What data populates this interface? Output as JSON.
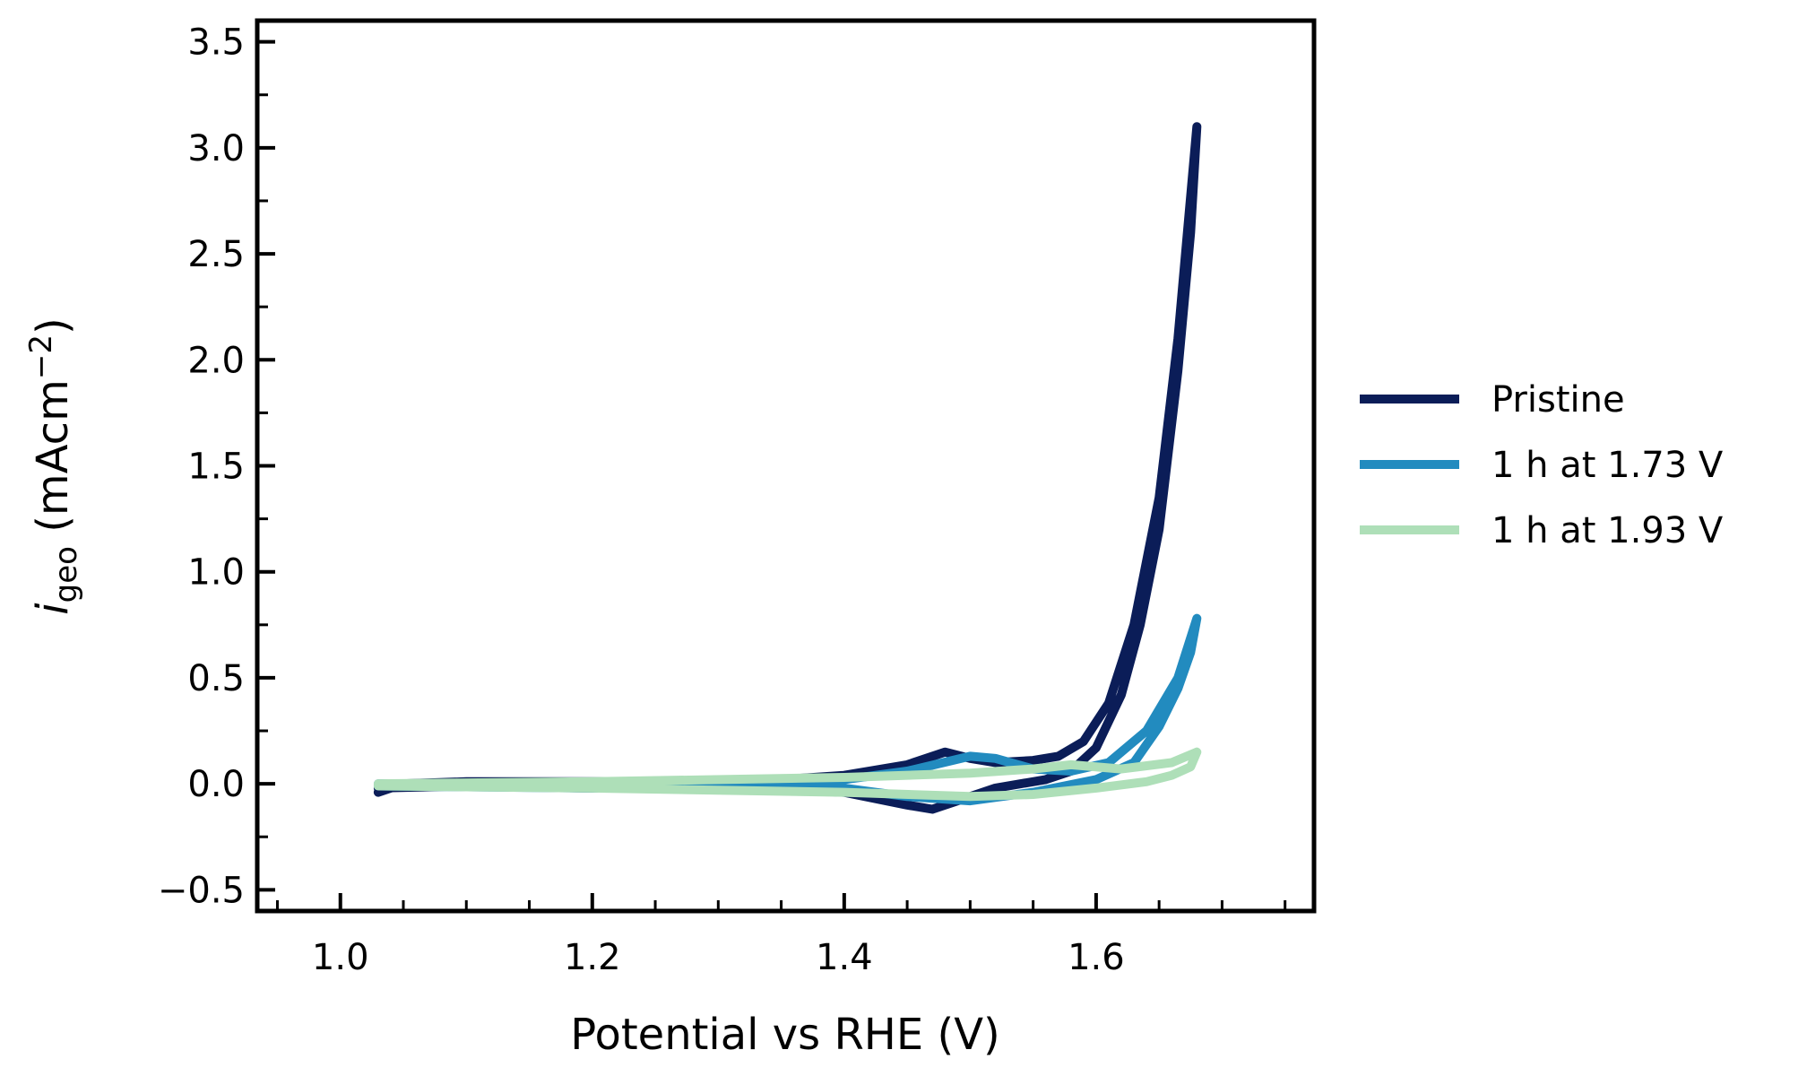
{
  "chart_data": {
    "type": "line",
    "xlabel": "Potential vs RHE (V)",
    "ylabel": {
      "symbol": "i",
      "subscript": "geo",
      "unit": " (mAcm",
      "superscript": "−2",
      "close": ")"
    },
    "xlim": [
      0.934,
      1.773
    ],
    "ylim": [
      -0.6,
      3.6
    ],
    "xticks": [
      1.0,
      1.2,
      1.4,
      1.6
    ],
    "xtick_labels": [
      "1.0",
      "1.2",
      "1.4",
      "1.6"
    ],
    "yticks": [
      -0.5,
      0.0,
      0.5,
      1.0,
      1.5,
      2.0,
      2.5,
      3.0,
      3.5
    ],
    "ytick_labels": [
      "−0.5",
      "0.0",
      "0.5",
      "1.0",
      "1.5",
      "2.0",
      "2.5",
      "3.0",
      "3.5"
    ],
    "grid": false,
    "legend_position": "outside-right",
    "series": [
      {
        "name": "Pristine",
        "color": "#0b1d58",
        "points": [
          [
            1.03,
            -0.04
          ],
          [
            1.05,
            0.0
          ],
          [
            1.1,
            0.01
          ],
          [
            1.2,
            0.01
          ],
          [
            1.3,
            0.01
          ],
          [
            1.35,
            0.02
          ],
          [
            1.4,
            0.04
          ],
          [
            1.45,
            0.09
          ],
          [
            1.48,
            0.15
          ],
          [
            1.5,
            0.12
          ],
          [
            1.52,
            0.1
          ],
          [
            1.55,
            0.11
          ],
          [
            1.57,
            0.13
          ],
          [
            1.59,
            0.2
          ],
          [
            1.61,
            0.38
          ],
          [
            1.63,
            0.75
          ],
          [
            1.65,
            1.35
          ],
          [
            1.665,
            2.1
          ],
          [
            1.68,
            3.1
          ],
          [
            1.675,
            2.6
          ],
          [
            1.665,
            1.95
          ],
          [
            1.65,
            1.2
          ],
          [
            1.635,
            0.75
          ],
          [
            1.62,
            0.42
          ],
          [
            1.6,
            0.17
          ],
          [
            1.58,
            0.06
          ],
          [
            1.56,
            0.02
          ],
          [
            1.52,
            -0.02
          ],
          [
            1.49,
            -0.08
          ],
          [
            1.47,
            -0.12
          ],
          [
            1.45,
            -0.1
          ],
          [
            1.4,
            -0.04
          ],
          [
            1.3,
            -0.01
          ],
          [
            1.2,
            -0.02
          ],
          [
            1.1,
            -0.01
          ],
          [
            1.03,
            -0.02
          ]
        ]
      },
      {
        "name": "1 h at 1.73 V",
        "color": "#228bbf",
        "points": [
          [
            1.03,
            0.0
          ],
          [
            1.2,
            0.0
          ],
          [
            1.4,
            0.02
          ],
          [
            1.45,
            0.06
          ],
          [
            1.5,
            0.13
          ],
          [
            1.52,
            0.12
          ],
          [
            1.55,
            0.07
          ],
          [
            1.58,
            0.06
          ],
          [
            1.61,
            0.1
          ],
          [
            1.64,
            0.25
          ],
          [
            1.665,
            0.5
          ],
          [
            1.68,
            0.78
          ],
          [
            1.675,
            0.62
          ],
          [
            1.665,
            0.45
          ],
          [
            1.65,
            0.27
          ],
          [
            1.63,
            0.1
          ],
          [
            1.6,
            0.02
          ],
          [
            1.55,
            -0.04
          ],
          [
            1.5,
            -0.08
          ],
          [
            1.45,
            -0.06
          ],
          [
            1.4,
            -0.02
          ],
          [
            1.2,
            -0.02
          ],
          [
            1.03,
            -0.01
          ]
        ]
      },
      {
        "name": "1 h at 1.93 V",
        "color": "#aedfb8",
        "points": [
          [
            1.03,
            0.0
          ],
          [
            1.2,
            0.01
          ],
          [
            1.4,
            0.03
          ],
          [
            1.5,
            0.05
          ],
          [
            1.55,
            0.07
          ],
          [
            1.58,
            0.09
          ],
          [
            1.62,
            0.07
          ],
          [
            1.66,
            0.1
          ],
          [
            1.68,
            0.15
          ],
          [
            1.675,
            0.08
          ],
          [
            1.66,
            0.04
          ],
          [
            1.64,
            0.01
          ],
          [
            1.6,
            -0.02
          ],
          [
            1.55,
            -0.05
          ],
          [
            1.5,
            -0.06
          ],
          [
            1.4,
            -0.04
          ],
          [
            1.2,
            -0.02
          ],
          [
            1.03,
            -0.01
          ]
        ]
      }
    ]
  }
}
